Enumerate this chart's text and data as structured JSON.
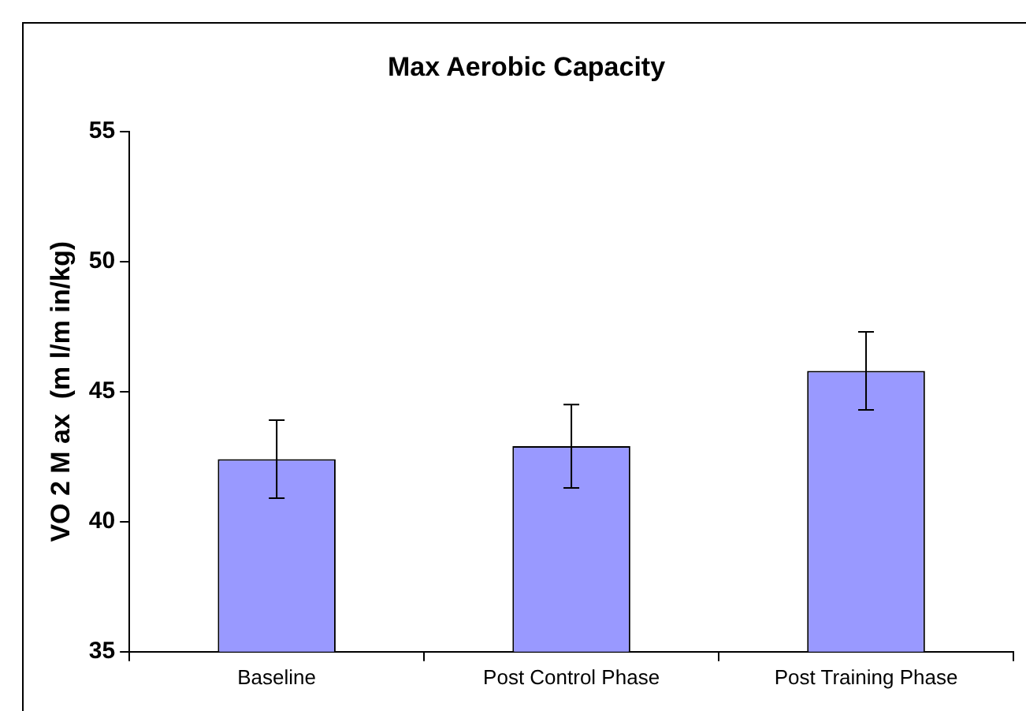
{
  "chart_data": {
    "type": "bar",
    "title": "Max Aerobic Capacity",
    "ylabel": "VO 2 M ax  (m l/m in/kg)",
    "categories": [
      "Baseline",
      "Post Control Phase",
      "Post Training Phase"
    ],
    "values": [
      42.4,
      42.9,
      45.8
    ],
    "errors": [
      1.5,
      1.6,
      1.5
    ],
    "color": "#9999ff",
    "ylim": [
      35,
      55
    ],
    "yticks": [
      35,
      40,
      45,
      50,
      55
    ],
    "grid": false,
    "legend": false
  }
}
